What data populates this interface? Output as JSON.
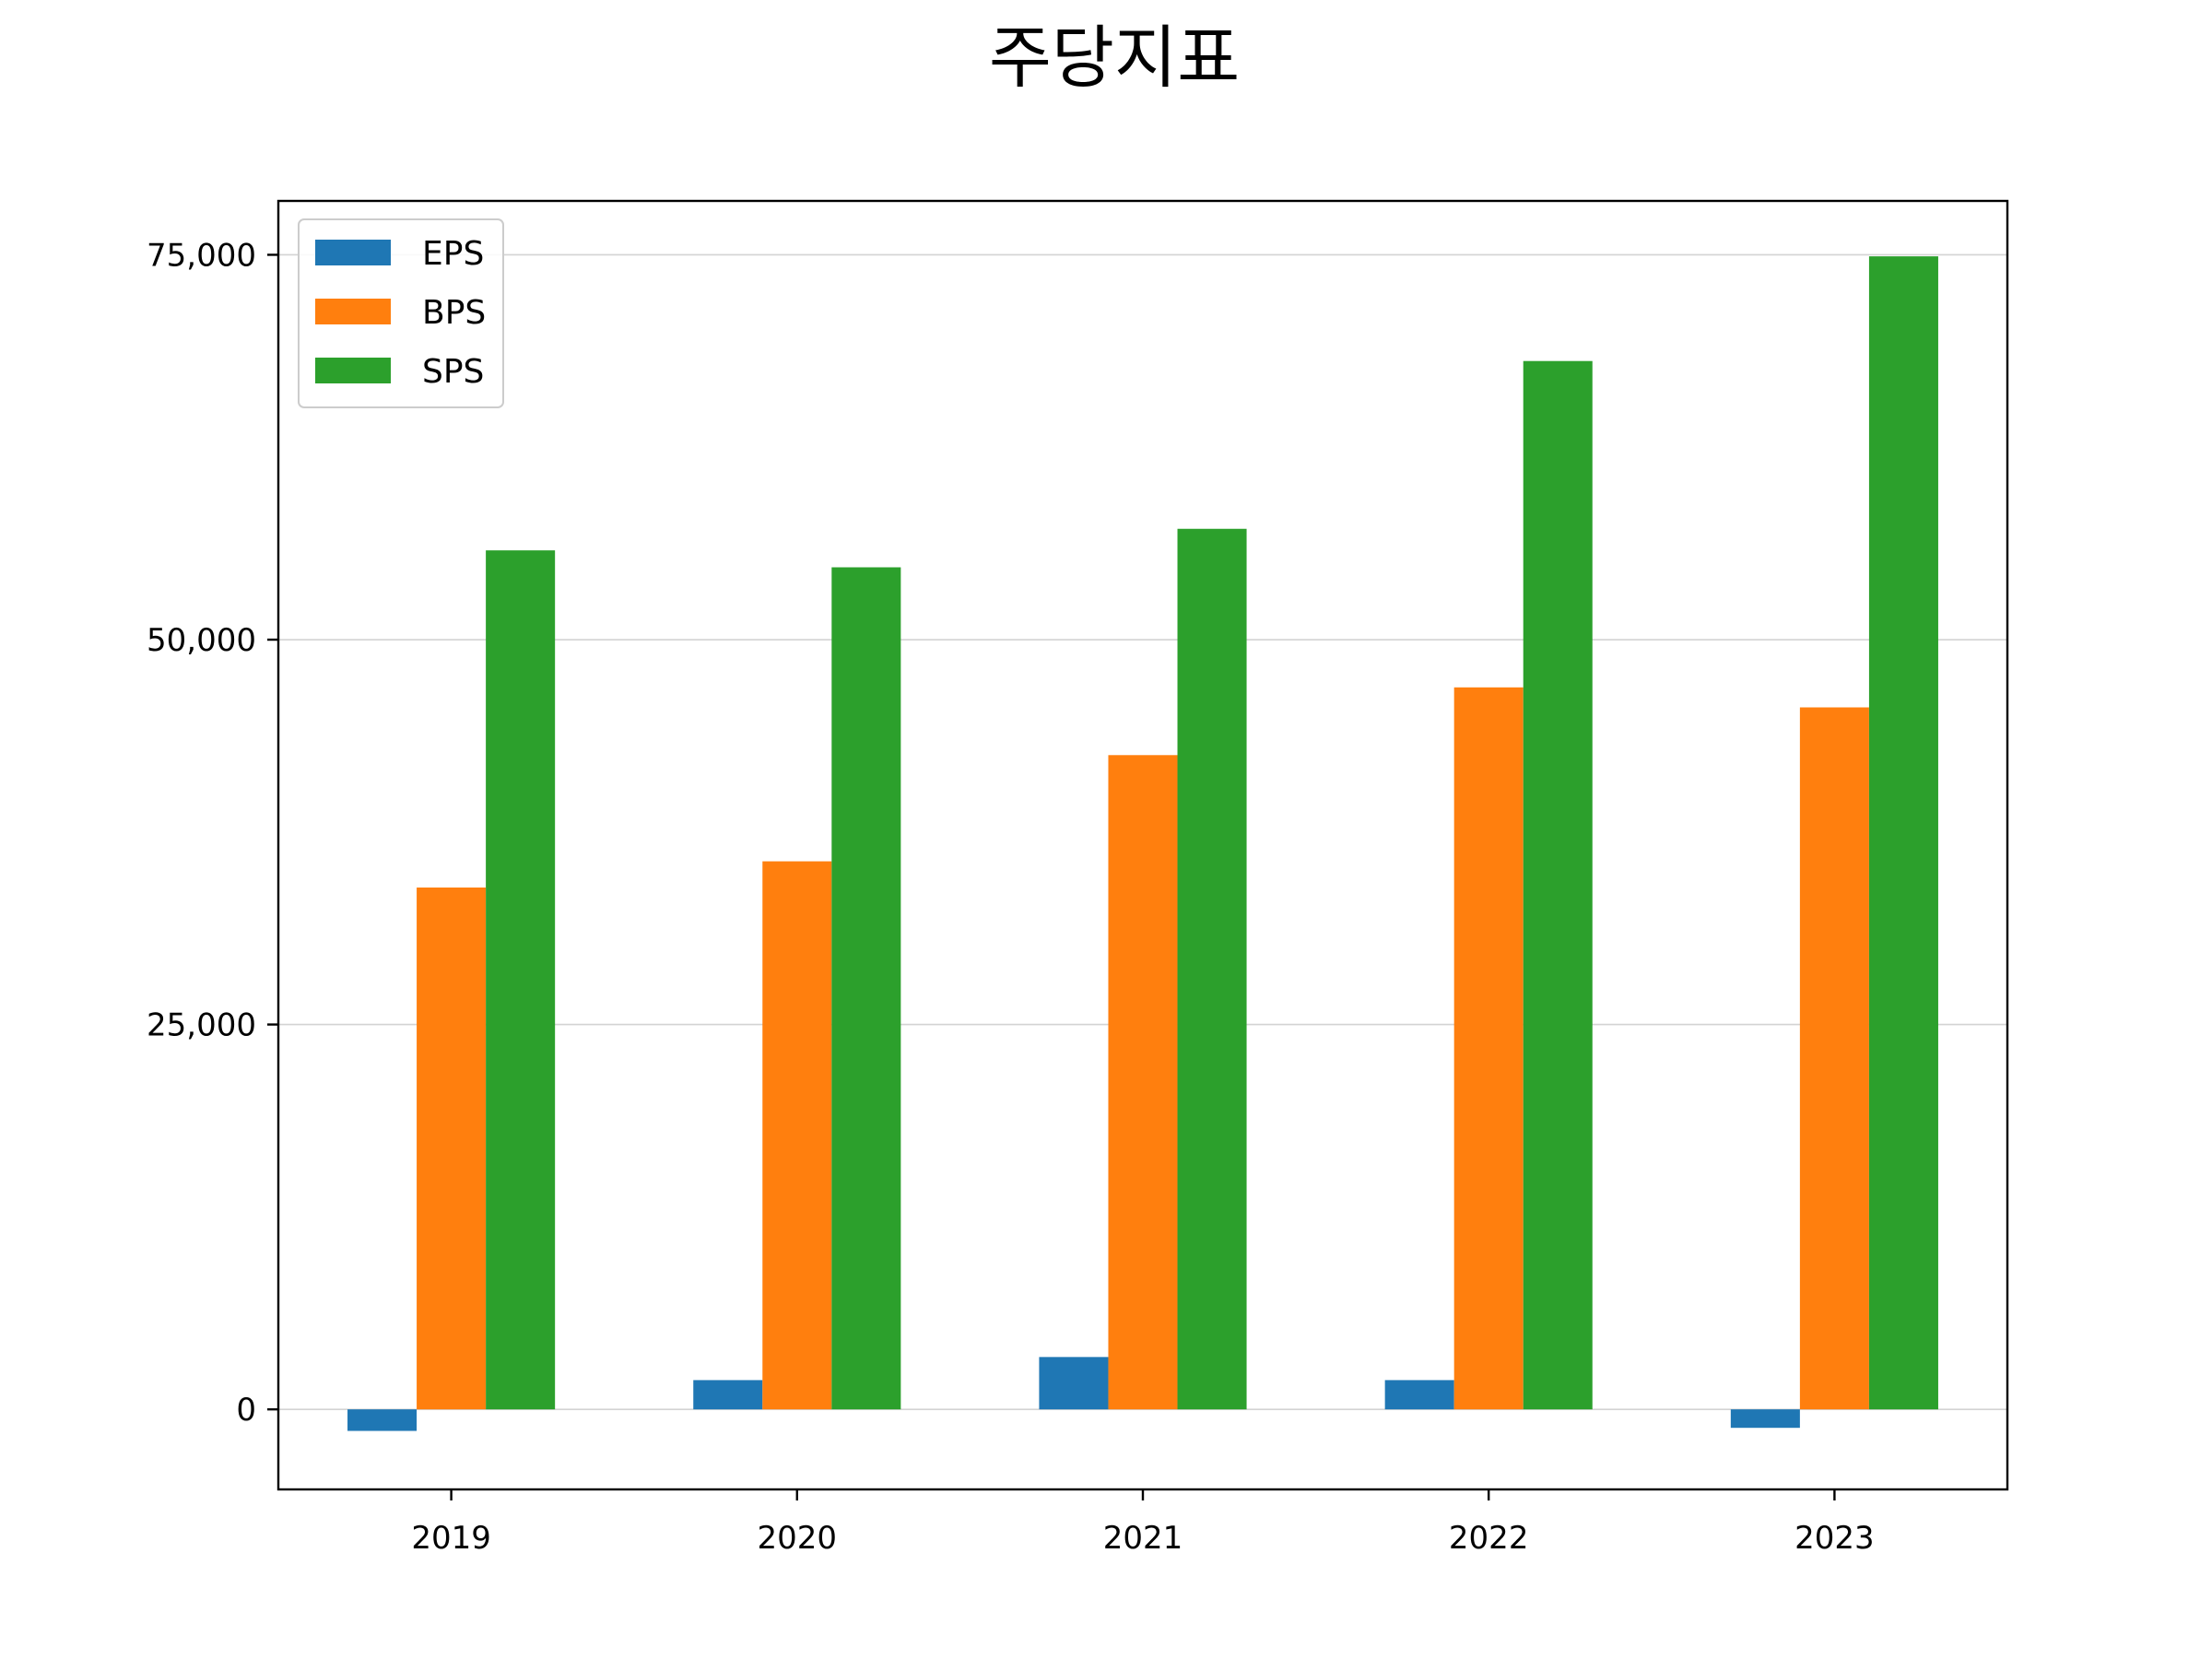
{
  "chart_data": {
    "type": "bar",
    "title": "주당지표",
    "xlabel": "",
    "ylabel": "",
    "categories": [
      "2019",
      "2020",
      "2021",
      "2022",
      "2023"
    ],
    "series": [
      {
        "name": "EPS",
        "color": "#1f77b4",
        "values": [
          -1400,
          1900,
          3400,
          1900,
          -1200
        ]
      },
      {
        "name": "BPS",
        "color": "#ff7f0e",
        "values": [
          33900,
          35600,
          42500,
          46900,
          45600
        ]
      },
      {
        "name": "SPS",
        "color": "#2ca02c",
        "values": [
          55800,
          54700,
          57200,
          68100,
          74900
        ]
      }
    ],
    "ylim": [
      -5200,
      78500
    ],
    "yticks": [
      0,
      25000,
      50000,
      75000
    ],
    "ytick_labels": [
      "0",
      "25,000",
      "50,000",
      "75,000"
    ],
    "grid": "y",
    "legend_position": "top-left"
  }
}
